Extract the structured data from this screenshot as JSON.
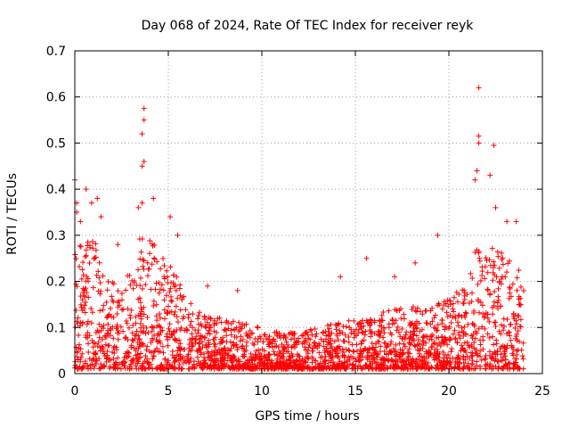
{
  "chart_data": {
    "type": "scatter",
    "title": "Day 068 of 2024, Rate Of TEC Index for receiver reyk",
    "xlabel": "GPS time / hours",
    "ylabel": "ROTI / TECUs",
    "xlim": [
      0,
      25
    ],
    "ylim": [
      0,
      0.7
    ],
    "x_ticks": [
      "0",
      "5",
      "10",
      "15",
      "20",
      "25"
    ],
    "x_tick_values": [
      0,
      5,
      10,
      15,
      20,
      25
    ],
    "y_ticks": [
      "0",
      "0.1",
      "0.2",
      "0.3",
      "0.4",
      "0.5",
      "0.6",
      "0.7"
    ],
    "y_tick_values": [
      0,
      0.1,
      0.2,
      0.3,
      0.4,
      0.5,
      0.6,
      0.7
    ],
    "grid": true,
    "marker": "plus",
    "marker_color": "#ff0000",
    "series": [
      {
        "name": "ROTI",
        "envelope": [
          {
            "x": 0.0,
            "y": 0.26
          },
          {
            "x": 0.5,
            "y": 0.3
          },
          {
            "x": 1.0,
            "y": 0.3
          },
          {
            "x": 1.5,
            "y": 0.22
          },
          {
            "x": 2.0,
            "y": 0.2
          },
          {
            "x": 2.5,
            "y": 0.2
          },
          {
            "x": 3.0,
            "y": 0.22
          },
          {
            "x": 3.5,
            "y": 0.3
          },
          {
            "x": 4.0,
            "y": 0.3
          },
          {
            "x": 4.5,
            "y": 0.26
          },
          {
            "x": 5.0,
            "y": 0.24
          },
          {
            "x": 5.5,
            "y": 0.22
          },
          {
            "x": 6.0,
            "y": 0.16
          },
          {
            "x": 6.5,
            "y": 0.14
          },
          {
            "x": 7.0,
            "y": 0.13
          },
          {
            "x": 8.0,
            "y": 0.12
          },
          {
            "x": 9.0,
            "y": 0.11
          },
          {
            "x": 10.0,
            "y": 0.1
          },
          {
            "x": 11.0,
            "y": 0.09
          },
          {
            "x": 12.0,
            "y": 0.09
          },
          {
            "x": 13.0,
            "y": 0.1
          },
          {
            "x": 14.0,
            "y": 0.11
          },
          {
            "x": 15.0,
            "y": 0.12
          },
          {
            "x": 16.0,
            "y": 0.13
          },
          {
            "x": 17.0,
            "y": 0.14
          },
          {
            "x": 18.0,
            "y": 0.15
          },
          {
            "x": 19.0,
            "y": 0.15
          },
          {
            "x": 20.0,
            "y": 0.16
          },
          {
            "x": 21.0,
            "y": 0.2
          },
          {
            "x": 21.5,
            "y": 0.28
          },
          {
            "x": 22.0,
            "y": 0.26
          },
          {
            "x": 22.5,
            "y": 0.28
          },
          {
            "x": 23.0,
            "y": 0.26
          },
          {
            "x": 23.5,
            "y": 0.24
          },
          {
            "x": 24.0,
            "y": 0.22
          }
        ],
        "notable_points": [
          {
            "x": 0.0,
            "y": 0.42
          },
          {
            "x": 0.1,
            "y": 0.37
          },
          {
            "x": 0.1,
            "y": 0.35
          },
          {
            "x": 0.3,
            "y": 0.33
          },
          {
            "x": 0.6,
            "y": 0.4
          },
          {
            "x": 0.9,
            "y": 0.37
          },
          {
            "x": 1.2,
            "y": 0.38
          },
          {
            "x": 1.4,
            "y": 0.34
          },
          {
            "x": 2.3,
            "y": 0.28
          },
          {
            "x": 3.4,
            "y": 0.36
          },
          {
            "x": 3.6,
            "y": 0.37
          },
          {
            "x": 3.6,
            "y": 0.45
          },
          {
            "x": 3.7,
            "y": 0.46
          },
          {
            "x": 3.6,
            "y": 0.52
          },
          {
            "x": 3.7,
            "y": 0.55
          },
          {
            "x": 3.7,
            "y": 0.575
          },
          {
            "x": 4.2,
            "y": 0.38
          },
          {
            "x": 5.1,
            "y": 0.34
          },
          {
            "x": 5.5,
            "y": 0.3
          },
          {
            "x": 7.1,
            "y": 0.19
          },
          {
            "x": 8.7,
            "y": 0.18
          },
          {
            "x": 14.2,
            "y": 0.21
          },
          {
            "x": 15.6,
            "y": 0.25
          },
          {
            "x": 17.1,
            "y": 0.21
          },
          {
            "x": 18.2,
            "y": 0.24
          },
          {
            "x": 19.4,
            "y": 0.3
          },
          {
            "x": 21.4,
            "y": 0.42
          },
          {
            "x": 21.5,
            "y": 0.44
          },
          {
            "x": 21.6,
            "y": 0.5
          },
          {
            "x": 21.6,
            "y": 0.515
          },
          {
            "x": 21.6,
            "y": 0.62
          },
          {
            "x": 22.2,
            "y": 0.43
          },
          {
            "x": 22.4,
            "y": 0.495
          },
          {
            "x": 22.5,
            "y": 0.36
          },
          {
            "x": 23.1,
            "y": 0.33
          },
          {
            "x": 23.6,
            "y": 0.33
          }
        ]
      }
    ]
  }
}
